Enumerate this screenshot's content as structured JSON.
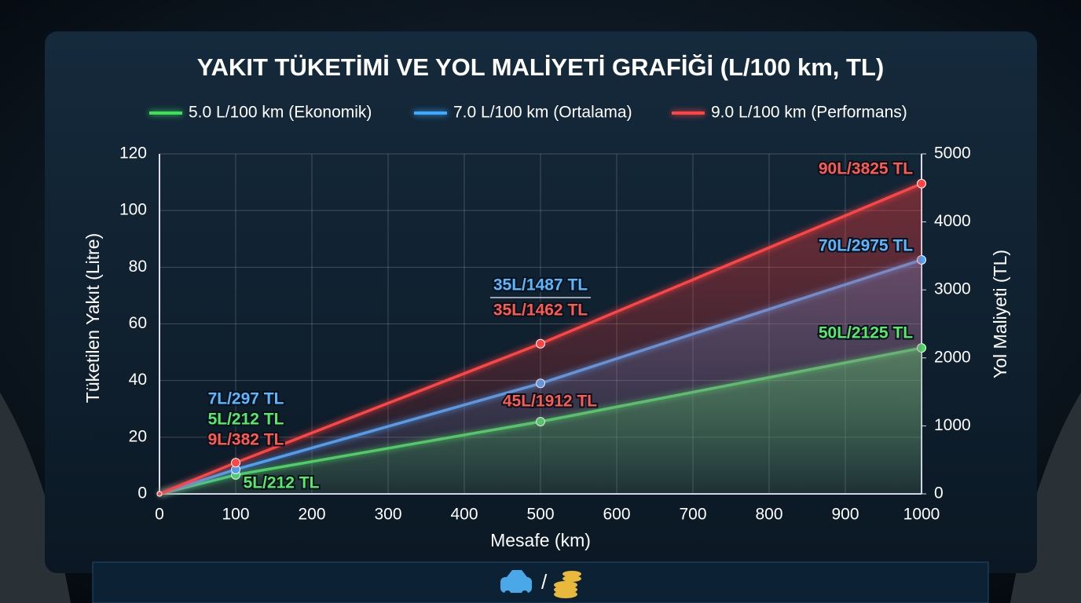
{
  "chart_data": {
    "type": "line",
    "title": "YAKIT TÜKETİMİ VE YOL MALİYETİ GRAFİĞİ (L/100 km, TL)",
    "x_label": "Mesafe (km)",
    "y_label": "Tüketilen Yakıt (Litre)",
    "y2_label": "Yol Maliyeti (TL)",
    "x": [
      0,
      100,
      500,
      1000
    ],
    "series": [
      {
        "name": "5.0 L/100 km (Ekonomik)",
        "color": "#3ee05a",
        "values": [
          0,
          6.7,
          25.5,
          51.5
        ]
      },
      {
        "name": "7.0 L/100 km (Ortalama)",
        "color": "#3fa9ff",
        "values": [
          0,
          8.6,
          39,
          82.6
        ]
      },
      {
        "name": "9.0 L/100 km (Performans)",
        "color": "#ff4444",
        "values": [
          0,
          11,
          53,
          109.5
        ]
      }
    ],
    "xlim": [
      0,
      1000
    ],
    "xticks": [
      0,
      100,
      200,
      300,
      400,
      500,
      600,
      700,
      800,
      900,
      1000
    ],
    "ylim": [
      0,
      120
    ],
    "yticks": [
      0,
      20,
      40,
      60,
      80,
      100,
      120
    ],
    "y2lim": [
      0,
      5000
    ],
    "y2ticks": [
      0,
      1000,
      2000,
      3000,
      4000,
      5000
    ],
    "grid": true,
    "annotations": [
      {
        "text": "90L/3825 TL",
        "color": "#ff5a50"
      },
      {
        "text": "70L/2975 TL",
        "color": "#5cb6ff"
      },
      {
        "text": "50L/2125 TL",
        "color": "#5ae86a"
      },
      {
        "text": "35L/1487 TL",
        "color": "#5cb6ff"
      },
      {
        "text": "35L/1462 TL",
        "color": "#ff5a50"
      },
      {
        "text": "45L/1912 TL",
        "color": "#ff5a50"
      },
      {
        "text": "7L/297 TL",
        "color": "#5cb6ff"
      },
      {
        "text": "5L/212 TL",
        "color": "#5ae86a"
      },
      {
        "text": "9L/382 TL",
        "color": "#ff5a50"
      },
      {
        "text": "5L/212 TL",
        "color": "#5ae86a"
      }
    ]
  }
}
